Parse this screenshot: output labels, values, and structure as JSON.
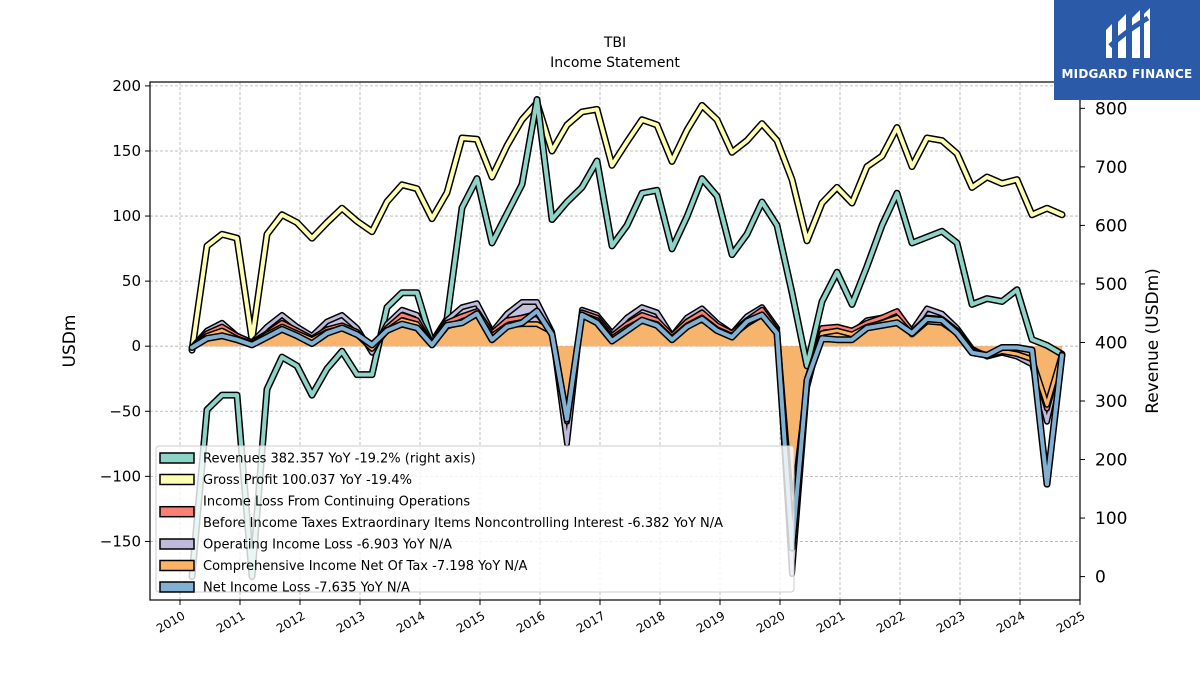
{
  "chart_data": {
    "type": "line",
    "title": "TBI",
    "subtitle": "Income Statement",
    "ylabel": "USDm",
    "y2label": "Revenue (USDm)",
    "ylim": [
      -195,
      203
    ],
    "y2lim": [
      -40,
      845
    ],
    "yticks": [
      -150,
      -100,
      -50,
      0,
      50,
      100,
      150,
      200
    ],
    "y2ticks": [
      0,
      100,
      200,
      300,
      400,
      500,
      600,
      700,
      800
    ],
    "xticks": [
      "2010",
      "2011",
      "2012",
      "2013",
      "2014",
      "2015",
      "2016",
      "2017",
      "2018",
      "2019",
      "2020",
      "2021",
      "2022",
      "2023",
      "2024",
      "2025"
    ],
    "xlim": [
      2009.5,
      2025.0
    ],
    "grid": true,
    "legend_position": "lower-left",
    "x": [
      2010.2,
      2010.45,
      2010.7,
      2010.95,
      2011.2,
      2011.45,
      2011.7,
      2011.95,
      2012.2,
      2012.45,
      2012.7,
      2012.95,
      2013.2,
      2013.45,
      2013.7,
      2013.95,
      2014.2,
      2014.45,
      2014.7,
      2014.95,
      2015.2,
      2015.45,
      2015.7,
      2015.95,
      2016.2,
      2016.45,
      2016.7,
      2016.95,
      2017.2,
      2017.45,
      2017.7,
      2017.95,
      2018.2,
      2018.45,
      2018.7,
      2018.95,
      2019.2,
      2019.45,
      2019.7,
      2019.95,
      2020.2,
      2020.45,
      2020.7,
      2020.95,
      2021.2,
      2021.45,
      2021.7,
      2021.95,
      2022.2,
      2022.45,
      2022.7,
      2022.95,
      2023.2,
      2023.45,
      2023.7,
      2023.95,
      2024.2,
      2024.45,
      2024.7
    ],
    "series": [
      {
        "name": "Revenues  382.357 YoY -19.2% (right axis)",
        "axis": "right",
        "color": "#8dd3c7",
        "values": [
          0,
          285,
          310,
          310,
          0,
          320,
          375,
          360,
          310,
          355,
          385,
          345,
          345,
          460,
          485,
          485,
          400,
          440,
          630,
          680,
          570,
          620,
          670,
          815,
          610,
          640,
          665,
          710,
          565,
          600,
          655,
          660,
          560,
          615,
          680,
          650,
          550,
          585,
          640,
          600,
          485,
          360,
          470,
          520,
          465,
          530,
          600,
          655,
          570,
          580,
          590,
          570,
          465,
          475,
          470,
          490,
          405,
          395,
          380
        ],
        "legend_color": "#8dd3c7"
      },
      {
        "name": "Gross Profit  100.037 YoY -19.4%",
        "axis": "left",
        "color": "#ffffb3",
        "values": [
          -3,
          77,
          86,
          83,
          5,
          86,
          101,
          95,
          83,
          95,
          106,
          96,
          88,
          111,
          124,
          121,
          98,
          118,
          160,
          159,
          130,
          154,
          174,
          187,
          150,
          170,
          180,
          182,
          139,
          157,
          174,
          170,
          142,
          166,
          185,
          174,
          149,
          158,
          171,
          158,
          128,
          81,
          110,
          122,
          110,
          138,
          146,
          168,
          138,
          160,
          158,
          148,
          122,
          130,
          125,
          128,
          101,
          106,
          101
        ],
        "legend_color": "#ffffb3"
      },
      {
        "name": "Income Loss From Continuing Operations\nBefore Income Taxes Extraordinary Items Noncontrolling Interest  -6.382 YoY N/A",
        "axis": "left",
        "color": "#fb8072",
        "values": [
          -1,
          10,
          15,
          8,
          3,
          10,
          18,
          12,
          6,
          13,
          16,
          11,
          -2,
          14,
          24,
          20,
          1,
          18,
          23,
          27,
          10,
          20,
          22,
          25,
          10,
          -58,
          26,
          22,
          8,
          17,
          24,
          20,
          8,
          19,
          26,
          16,
          10,
          20,
          28,
          12,
          -128,
          -30,
          14,
          15,
          12,
          18,
          22,
          27,
          11,
          22,
          21,
          12,
          -3,
          -7,
          -3,
          -6,
          -10,
          -48,
          -6
        ],
        "legend_color": "#fb8072"
      },
      {
        "name": "Operating Income Loss  -6.903 YoY N/A",
        "axis": "left",
        "color": "#bebada",
        "values": [
          -1,
          12,
          18,
          8,
          3,
          15,
          24,
          15,
          8,
          19,
          24,
          14,
          -5,
          17,
          28,
          24,
          2,
          20,
          30,
          33,
          11,
          25,
          34,
          34,
          11,
          -75,
          28,
          24,
          10,
          22,
          30,
          26,
          8,
          22,
          29,
          18,
          10,
          23,
          30,
          14,
          -175,
          -32,
          13,
          12,
          10,
          20,
          22,
          25,
          12,
          29,
          25,
          14,
          -2,
          -8,
          -5,
          -8,
          -14,
          -58,
          -7
        ],
        "legend_color": "#bebada"
      },
      {
        "name": "Comprehensive Income Net Of Tax  -7.198 YoY N/A",
        "axis": "left",
        "color": "#fdb462",
        "values": [
          -1,
          8,
          12,
          6,
          2,
          9,
          15,
          10,
          5,
          11,
          14,
          9,
          -2,
          12,
          20,
          17,
          1,
          15,
          19,
          24,
          8,
          16,
          17,
          17,
          11,
          -55,
          24,
          20,
          6,
          14,
          20,
          17,
          6,
          16,
          22,
          13,
          8,
          17,
          24,
          10,
          -150,
          -25,
          10,
          12,
          9,
          15,
          18,
          22,
          9,
          19,
          18,
          10,
          -4,
          -7,
          -4,
          -6,
          -10,
          -45,
          -6
        ],
        "legend_color": "#fdb462"
      },
      {
        "name": "Net Income Loss  -7.635 YoY N/A",
        "axis": "left",
        "color": "#80b1d3",
        "values": [
          -1,
          6,
          8,
          5,
          1,
          7,
          13,
          8,
          2,
          10,
          14,
          9,
          1,
          12,
          17,
          14,
          1,
          16,
          18,
          25,
          5,
          15,
          18,
          27,
          9,
          -56,
          24,
          18,
          4,
          12,
          20,
          16,
          5,
          15,
          21,
          12,
          7,
          19,
          24,
          10,
          -155,
          -26,
          6,
          5,
          5,
          14,
          16,
          18,
          10,
          21,
          20,
          10,
          -5,
          -7,
          -1,
          -1,
          -3,
          -106,
          -7
        ],
        "legend_color": "#80b1d3"
      }
    ]
  },
  "logo": {
    "text": "MIDGARD FINANCE"
  }
}
